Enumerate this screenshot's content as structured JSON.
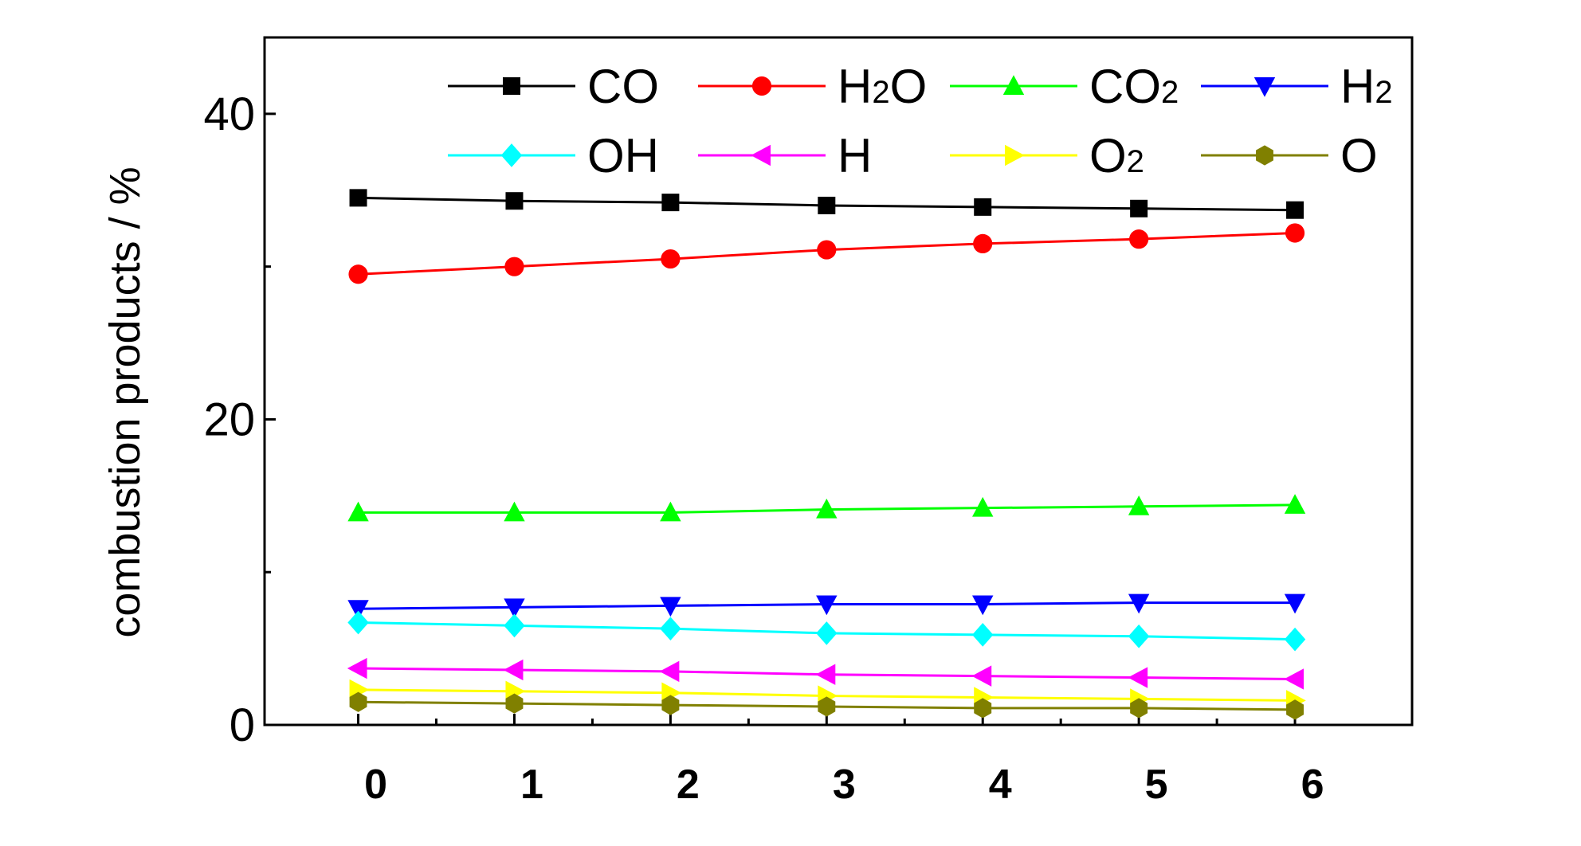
{
  "chart_data": {
    "type": "line",
    "title": "",
    "xlabel": "",
    "ylabel": "combustion products / %",
    "x": [
      0,
      1,
      2,
      3,
      4,
      5,
      6
    ],
    "x_tick_labels": [
      "0",
      "1",
      "2",
      "3",
      "4",
      "5",
      "6"
    ],
    "y_tick_labels": [
      "0",
      "20",
      "40"
    ],
    "xlim": [
      -0.6,
      6.75
    ],
    "ylim": [
      0,
      45
    ],
    "y_major_ticks": [
      0,
      20,
      40
    ],
    "y_minor_ticks": [
      10,
      30
    ],
    "grid": false,
    "legend_placement": "top, inside plot, 4 columns",
    "series": [
      {
        "name_main": "CO",
        "name_sub": "",
        "color": "#000000",
        "marker": "square",
        "values": [
          34.5,
          34.3,
          34.2,
          34.0,
          33.9,
          33.8,
          33.7
        ]
      },
      {
        "name_main": "H",
        "name_sub": "2",
        "name_tail": "O",
        "color": "#ff0000",
        "marker": "circle",
        "values": [
          29.5,
          30.0,
          30.5,
          31.1,
          31.5,
          31.8,
          32.2
        ]
      },
      {
        "name_main": "CO",
        "name_sub": "2",
        "color": "#00ff00",
        "marker": "triangle-up",
        "values": [
          13.9,
          13.9,
          13.9,
          14.1,
          14.2,
          14.3,
          14.4
        ]
      },
      {
        "name_main": "H",
        "name_sub": "2",
        "color": "#0000ff",
        "marker": "triangle-down",
        "values": [
          7.6,
          7.7,
          7.8,
          7.9,
          7.9,
          8.0,
          8.0
        ]
      },
      {
        "name_main": "OH",
        "name_sub": "",
        "color": "#00ffff",
        "marker": "diamond",
        "values": [
          6.7,
          6.5,
          6.3,
          6.0,
          5.9,
          5.8,
          5.6
        ]
      },
      {
        "name_main": "H",
        "name_sub": "",
        "color": "#ff00ff",
        "marker": "triangle-left",
        "values": [
          3.7,
          3.6,
          3.5,
          3.3,
          3.2,
          3.1,
          3.0
        ]
      },
      {
        "name_main": "O",
        "name_sub": "2",
        "color": "#ffff00",
        "marker": "triangle-right",
        "values": [
          2.3,
          2.2,
          2.1,
          1.9,
          1.8,
          1.7,
          1.6
        ]
      },
      {
        "name_main": "O",
        "name_sub": "",
        "color": "#808000",
        "marker": "hexagon",
        "values": [
          1.5,
          1.4,
          1.3,
          1.2,
          1.1,
          1.1,
          1.0
        ]
      }
    ]
  }
}
